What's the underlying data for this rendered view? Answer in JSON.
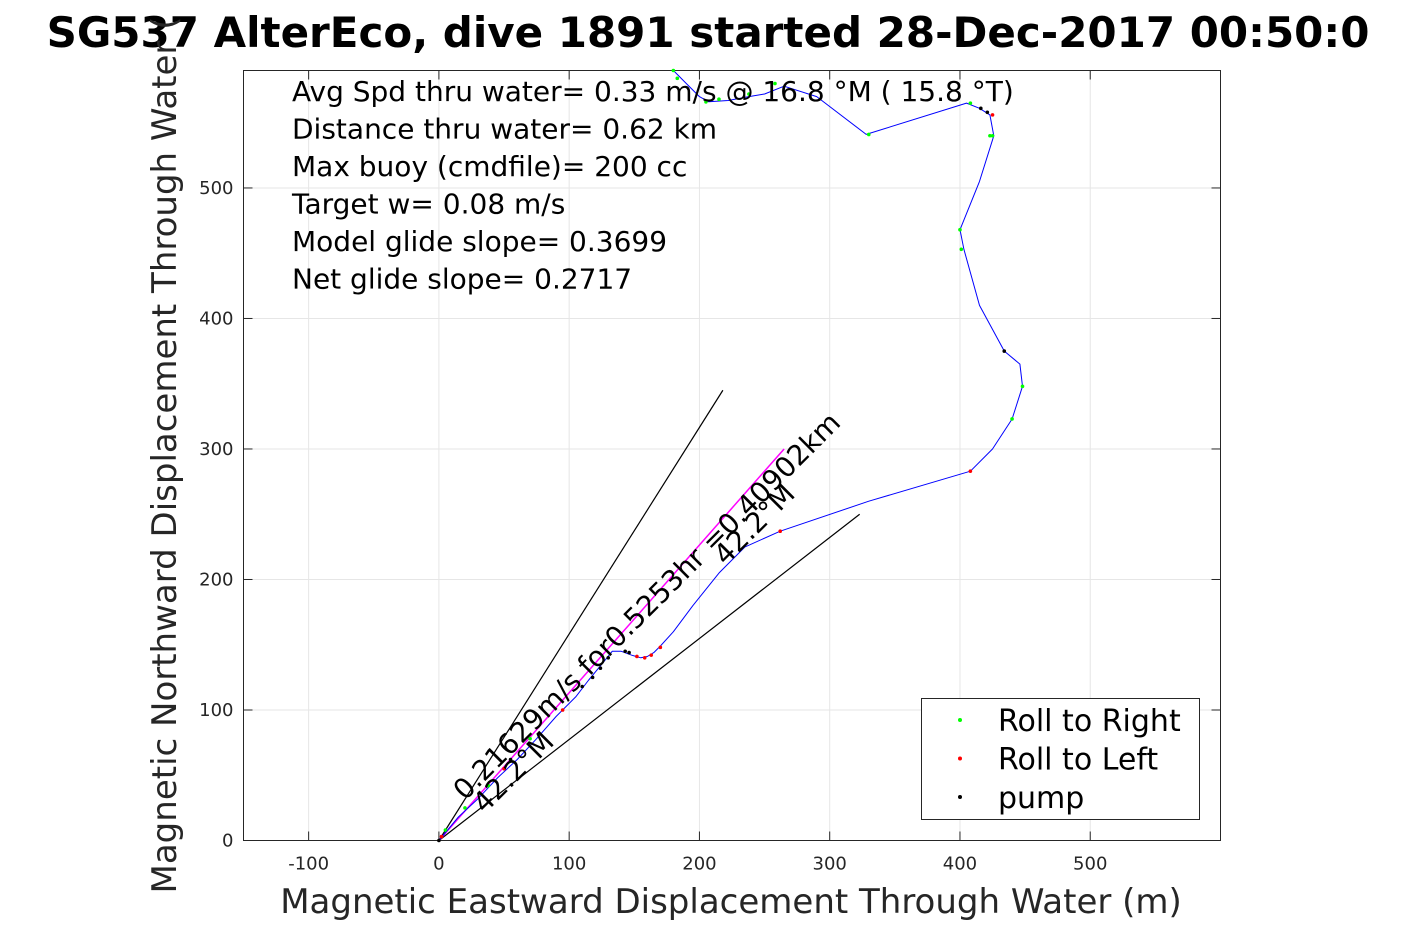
{
  "chart_data": {
    "type": "scatter",
    "title": "SG537 AlterEco, dive 1891 started 28-Dec-2017 00:50:0",
    "xlabel": "Magnetic Eastward Displacement Through Water (m)",
    "ylabel": "Magnetic Northward Displacement Through Water (",
    "xlim": [
      -150,
      600
    ],
    "ylim": [
      0,
      590
    ],
    "xticks": [
      -100,
      0,
      100,
      200,
      300,
      400,
      500
    ],
    "xtick_labels": [
      "-100",
      "0",
      "100",
      "200",
      "300",
      "400",
      "500"
    ],
    "yticks": [
      0,
      100,
      200,
      300,
      400,
      500
    ],
    "ytick_labels": [
      "0",
      "100",
      "200",
      "300",
      "400",
      "500"
    ],
    "grid": true,
    "legend_position": "bottom-right",
    "stats": [
      "Avg Spd thru water=  0.33 m/s @  16.8 °M ( 15.8 °T)",
      "Distance thru water=  0.62 km",
      "Max buoy (cmdfile)= 200 cc",
      "Target w= 0.08 m/s",
      "Model glide slope= 0.3699",
      "Net glide slope= 0.2717"
    ],
    "annotations": [
      {
        "text": "0.21629m/s for0.5253hr =0.40902km",
        "x": 20,
        "y": 30,
        "angle": 45
      },
      {
        "text": "42.2°M",
        "x": 35,
        "y": 20,
        "angle": 45
      },
      {
        "text": "42.2°M",
        "x": 220,
        "y": 210,
        "angle": 45
      }
    ],
    "reference_lines": [
      {
        "name": "upper-bound",
        "color": "#000000",
        "x": [
          0,
          218
        ],
        "y": [
          0,
          345
        ]
      },
      {
        "name": "lower-bound",
        "color": "#000000",
        "x": [
          0,
          323
        ],
        "y": [
          0,
          250
        ]
      },
      {
        "name": "depth-averaged-current",
        "color": "#ff00ff",
        "x": [
          0,
          265
        ],
        "y": [
          0,
          300
        ]
      }
    ],
    "track": {
      "color": "#0000ff",
      "x": [
        0,
        15,
        30,
        45,
        60,
        75,
        90,
        105,
        115,
        125,
        133,
        140,
        148,
        155,
        160,
        165,
        170,
        180,
        195,
        215,
        235,
        262,
        330,
        408,
        425,
        440,
        448,
        446,
        434,
        415,
        403,
        400,
        415,
        426,
        423,
        415,
        405,
        328,
        290,
        265,
        250,
        238,
        222,
        207,
        200,
        190,
        180
      ],
      "y": [
        0,
        18,
        32,
        48,
        62,
        78,
        95,
        110,
        123,
        135,
        145,
        145,
        142,
        140,
        141,
        144,
        149,
        160,
        180,
        205,
        225,
        237,
        260,
        283,
        300,
        323,
        348,
        365,
        375,
        410,
        453,
        468,
        505,
        540,
        556,
        561,
        565,
        541,
        570,
        578,
        572,
        570,
        567,
        566,
        570,
        580,
        590
      ]
    },
    "series": [
      {
        "name": "Roll to Right",
        "color": "#00ff00",
        "x": [
          5,
          20,
          38,
          70,
          425,
          440,
          448,
          401,
          400,
          423,
          408,
          330,
          258,
          238,
          215,
          205,
          183,
          180
        ],
        "y": [
          8,
          25,
          42,
          78,
          540,
          323,
          348,
          453,
          468,
          540,
          565,
          541,
          580,
          572,
          568,
          566,
          584,
          590
        ]
      },
      {
        "name": "Roll to Left",
        "color": "#ff0000",
        "x": [
          2,
          50,
          95,
          152,
          158,
          163,
          170,
          262,
          408,
          425
        ],
        "y": [
          3,
          55,
          100,
          141,
          140,
          142,
          148,
          237,
          283,
          556
        ]
      },
      {
        "name": "pump",
        "color": "#000000",
        "x": [
          0,
          55,
          110,
          118,
          124,
          130,
          143,
          146,
          434,
          416,
          421
        ],
        "y": [
          0,
          62,
          118,
          125,
          132,
          140,
          145,
          144,
          375,
          561,
          558
        ]
      }
    ]
  }
}
